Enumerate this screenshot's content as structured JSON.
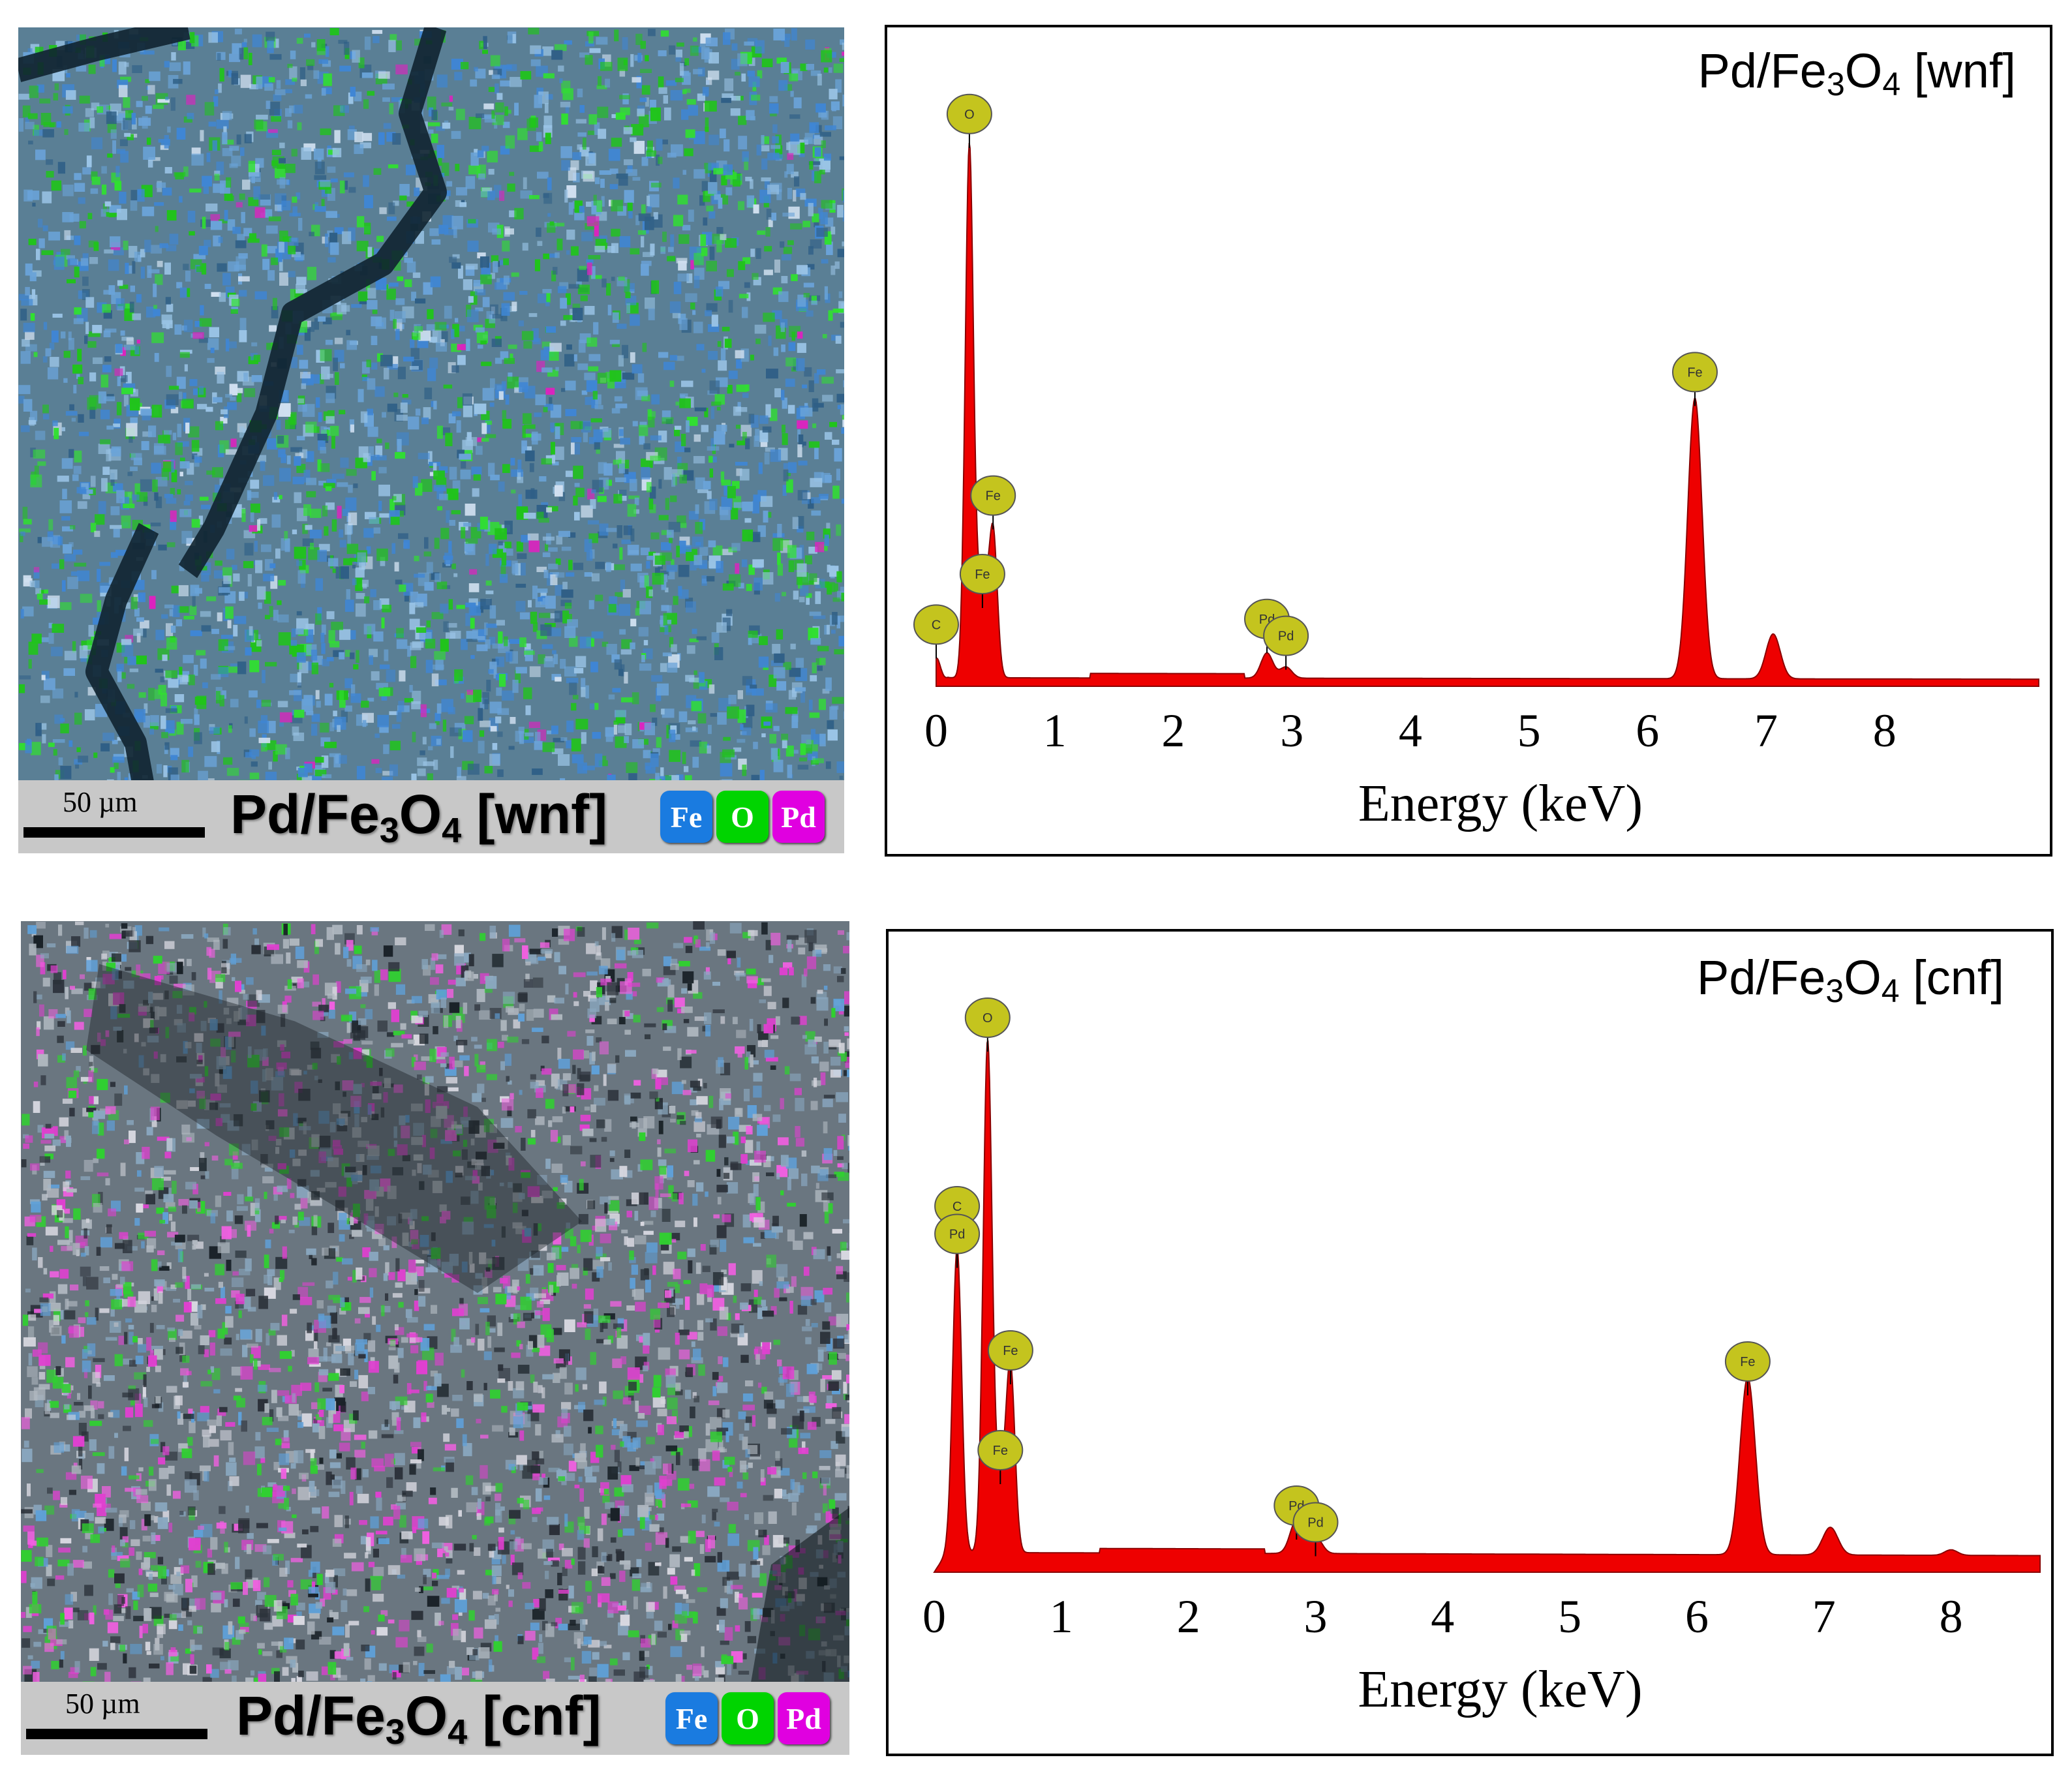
{
  "colors": {
    "fe": "#1a7be0",
    "o": "#00d400",
    "pd": "#e000e0",
    "spectrum_fill": "#ee0000",
    "marker_fill": "#c4c41e"
  },
  "panels": [
    {
      "map": {
        "scale_label": "50 µm",
        "title": {
          "main": "Pd/Fe",
          "sub1": "3",
          "mid": "O",
          "sub2": "4",
          "tail": " [wnf]"
        },
        "legend": [
          "Fe",
          "O",
          "Pd"
        ],
        "base_color": "#5a7f95",
        "dominant": [
          "fe",
          "o"
        ]
      }
    },
    {
      "map": {
        "scale_label": "50 µm",
        "title": {
          "main": "Pd/Fe",
          "sub1": "3",
          "mid": "O",
          "sub2": "4",
          "tail": " [cnf]"
        },
        "legend": [
          "Fe",
          "O",
          "Pd"
        ],
        "base_color": "#6a7680",
        "dominant": [
          "pd",
          "o"
        ]
      }
    }
  ],
  "chart_data": [
    {
      "type": "area",
      "title": {
        "main": "Pd/Fe",
        "sub1": "3",
        "mid": "O",
        "sub2": "4",
        "tail": " [wnf]"
      },
      "xlabel": "Energy (keV)",
      "ylabel": "",
      "xlim": [
        0,
        9.3
      ],
      "ylim": [
        0,
        100
      ],
      "xticks": [
        0,
        1,
        2,
        3,
        4,
        5,
        6,
        7,
        8
      ],
      "baseline": 1.5,
      "peaks": [
        {
          "x": 0.0,
          "y": 5,
          "w": 0.035
        },
        {
          "x": 0.28,
          "y": 95,
          "w": 0.035
        },
        {
          "x": 0.39,
          "y": 18,
          "w": 0.04
        },
        {
          "x": 0.48,
          "y": 26,
          "w": 0.035
        },
        {
          "x": 2.79,
          "y": 4.5,
          "w": 0.05
        },
        {
          "x": 2.95,
          "y": 2,
          "w": 0.05
        },
        {
          "x": 6.4,
          "y": 50,
          "w": 0.06
        },
        {
          "x": 7.06,
          "y": 8,
          "w": 0.06
        }
      ],
      "markers": [
        {
          "label": "O",
          "x": 0.28,
          "y": 102
        },
        {
          "label": "Fe",
          "x": 6.4,
          "y": 56
        },
        {
          "label": "Fe",
          "x": 0.48,
          "y": 34
        },
        {
          "label": "Fe",
          "x": 0.39,
          "y": 20
        },
        {
          "label": "C",
          "x": 0.0,
          "y": 11
        },
        {
          "label": "Pd",
          "x": 2.79,
          "y": 12
        },
        {
          "label": "Pd",
          "x": 2.95,
          "y": 9
        }
      ]
    },
    {
      "type": "area",
      "title": {
        "main": "Pd/Fe",
        "sub1": "3",
        "mid": "O",
        "sub2": "4",
        "tail": " [cnf]"
      },
      "xlabel": "Energy (keV)",
      "ylabel": "",
      "xlim": [
        0,
        8.7
      ],
      "ylim": [
        0,
        100
      ],
      "xticks": [
        0,
        1,
        2,
        3,
        4,
        5,
        6,
        7,
        8
      ],
      "baseline": 3.5,
      "peaks": [
        {
          "x": 0.18,
          "y": 55,
          "w": 0.035
        },
        {
          "x": 0.42,
          "y": 92,
          "w": 0.035
        },
        {
          "x": 0.52,
          "y": 12,
          "w": 0.04
        },
        {
          "x": 0.6,
          "y": 33,
          "w": 0.035
        },
        {
          "x": 2.85,
          "y": 6,
          "w": 0.05
        },
        {
          "x": 3.0,
          "y": 3,
          "w": 0.05
        },
        {
          "x": 6.4,
          "y": 32,
          "w": 0.06
        },
        {
          "x": 7.05,
          "y": 5,
          "w": 0.06
        },
        {
          "x": 8.0,
          "y": 1,
          "w": 0.05
        }
      ],
      "markers": [
        {
          "label": "O",
          "x": 0.42,
          "y": 100
        },
        {
          "label": "C",
          "x": 0.18,
          "y": 66
        },
        {
          "label": "Pd",
          "x": 0.18,
          "y": 61
        },
        {
          "label": "Fe",
          "x": 0.6,
          "y": 40
        },
        {
          "label": "Fe",
          "x": 6.4,
          "y": 38
        },
        {
          "label": "Fe",
          "x": 0.52,
          "y": 22
        },
        {
          "label": "Pd",
          "x": 2.85,
          "y": 12
        },
        {
          "label": "Pd",
          "x": 3.0,
          "y": 9
        }
      ]
    }
  ]
}
